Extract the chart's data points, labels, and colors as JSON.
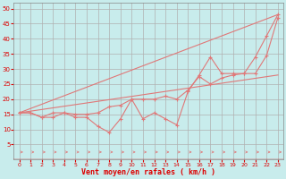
{
  "xlabel": "Vent moyen/en rafales ( km/h )",
  "background_color": "#c8ecec",
  "grid_color": "#b0b0b0",
  "line_color": "#e07878",
  "text_color": "#dd0000",
  "xlim": [
    -0.5,
    23.5
  ],
  "ylim": [
    0,
    52
  ],
  "xticks": [
    0,
    1,
    2,
    3,
    4,
    5,
    6,
    7,
    8,
    9,
    10,
    11,
    12,
    13,
    14,
    15,
    16,
    17,
    18,
    19,
    20,
    21,
    22,
    23
  ],
  "yticks": [
    5,
    10,
    15,
    20,
    25,
    30,
    35,
    40,
    45,
    50
  ],
  "line1_x": [
    0,
    1,
    2,
    3,
    4,
    5,
    6,
    7,
    8,
    9,
    10,
    11,
    12,
    13,
    14,
    15,
    16,
    17,
    18,
    19,
    20,
    21,
    22,
    23
  ],
  "line1_y": [
    15.5,
    15.5,
    14,
    14,
    15.5,
    14,
    14,
    11,
    9,
    13.5,
    20,
    13.5,
    15.5,
    13.5,
    11.5,
    22.5,
    28,
    34,
    28.5,
    28.5,
    28.5,
    34,
    41,
    48
  ],
  "line2_x": [
    0,
    1,
    2,
    3,
    4,
    5,
    6,
    7,
    8,
    9,
    10,
    11,
    12,
    13,
    14,
    15,
    16,
    17,
    18,
    19,
    20,
    21,
    22,
    23
  ],
  "line2_y": [
    15.5,
    15.5,
    14,
    15.5,
    15.5,
    15,
    15,
    15.5,
    17.5,
    18,
    20,
    20,
    20,
    21,
    20,
    23,
    27.5,
    25,
    27,
    28,
    28.5,
    28.5,
    34.5,
    47
  ],
  "line3_x": [
    0,
    23
  ],
  "line3_y": [
    15.5,
    48
  ],
  "line4_x": [
    0,
    23
  ],
  "line4_y": [
    15.5,
    28
  ]
}
